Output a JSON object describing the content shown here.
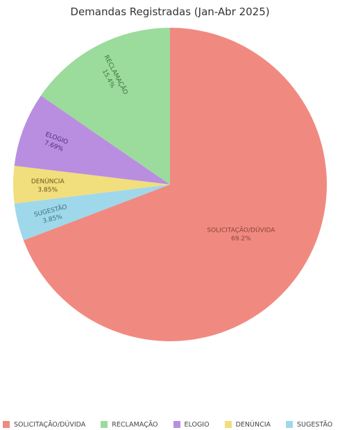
{
  "chart_data": {
    "type": "pie",
    "title": "Demandas Registradas (Jan-Abr 2025)",
    "categories": [
      "SOLICITAÇÃO/DÚVIDA",
      "SUGESTÃO",
      "DENÚNCIA",
      "ELOGIO",
      "RECLAMAÇÃO"
    ],
    "values": [
      69.2,
      3.85,
      3.85,
      7.69,
      15.4
    ],
    "value_labels": [
      "69.2%",
      "3.85%",
      "3.85%",
      "7.69%",
      "15.4%"
    ],
    "colors": [
      "#f08a80",
      "#9fd8ea",
      "#f1de7c",
      "#b98ee0",
      "#9bdb9c"
    ],
    "label_colors": [
      "#8a3f38",
      "#3f6f82",
      "#6b5a1d",
      "#4f2f7a",
      "#3f7440"
    ],
    "legend_placement": "bottom",
    "legend": [
      "SOLICITAÇÃO/DÚVIDA",
      "RECLAMAÇÃO",
      "ELOGIO",
      "DENÚNCIA",
      "SUGESTÃO"
    ],
    "legend_colors": [
      "#f08a80",
      "#9bdb9c",
      "#b98ee0",
      "#f1de7c",
      "#9fd8ea"
    ]
  }
}
